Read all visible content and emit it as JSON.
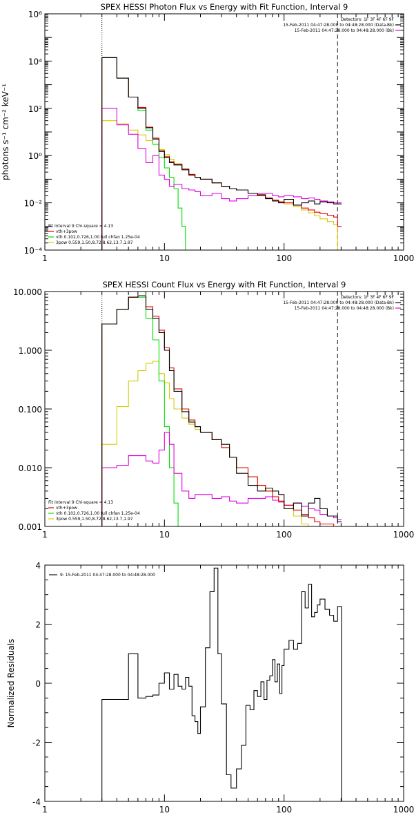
{
  "chart_data": [
    {
      "type": "line",
      "title": "SPEX HESSI Photon Flux vs Energy with Fit Function, Interval 9",
      "ylabel": "photons s⁻¹ cm⁻² keV⁻¹",
      "xscale": "log",
      "yscale": "log",
      "xlim": [
        1,
        1000
      ],
      "ylim": [
        0.0001,
        1000000
      ],
      "xticks": [
        "1",
        "10",
        "100",
        "1000"
      ],
      "yticks": [
        "10⁻⁴",
        "10⁻²",
        "10⁰",
        "10²",
        "10⁴",
        "10⁶"
      ],
      "legend_right": [
        "Detectors: 1F 3F 4F 6F 9F",
        "15-Feb-2011 04:47:28.000 to 04:48:28.000 (Data-Bk)",
        "15-Feb-2011 04:47:28.000 to 04:48:28.000 (Bk)"
      ],
      "legend_left": [
        "Fit Interval 9   Chi-square = 4.13",
        "vth+3pow",
        "vth 0.102,0.726,1.00  full chfan 1.25e-04",
        "3pow 0.559,1.50,8.72,8.62,13.7,1.97"
      ],
      "vlines": [
        3,
        280
      ],
      "series": [
        {
          "name": "15-Feb-2011 04:47:28.000 to 04:48:28.000 (Data-Bk)",
          "color": "#000000",
          "x": [
            3,
            4,
            5,
            6,
            7,
            8,
            9,
            10,
            11,
            12,
            14,
            16,
            18,
            20,
            25,
            30,
            35,
            40,
            50,
            60,
            70,
            80,
            90,
            100,
            120,
            140,
            160,
            180,
            200,
            230,
            260,
            280
          ],
          "y": [
            14000,
            1900,
            300,
            100,
            15,
            5,
            1.5,
            0.8,
            0.5,
            0.4,
            0.25,
            0.15,
            0.12,
            0.1,
            0.07,
            0.05,
            0.04,
            0.035,
            0.025,
            0.022,
            0.015,
            0.012,
            0.01,
            0.014,
            0.008,
            0.01,
            0.012,
            0.009,
            0.011,
            0.01,
            0.009,
            0.009
          ]
        },
        {
          "name": "vth+3pow",
          "color": "#e00000",
          "x": [
            3,
            4,
            5,
            6,
            7,
            8,
            9,
            10,
            11,
            12,
            14,
            16,
            18,
            20,
            25,
            30,
            35,
            40,
            50,
            60,
            70,
            80,
            90,
            100,
            120,
            140,
            160,
            180,
            200,
            230,
            260,
            280
          ],
          "y": [
            14000,
            1900,
            300,
            110,
            16,
            5.5,
            1.6,
            0.9,
            0.55,
            0.42,
            0.27,
            0.16,
            0.12,
            0.1,
            0.07,
            0.05,
            0.04,
            0.035,
            0.025,
            0.02,
            0.016,
            0.013,
            0.011,
            0.01,
            0.008,
            0.006,
            0.005,
            0.004,
            0.0035,
            0.003,
            0.0025,
            0.001
          ]
        },
        {
          "name": "vth",
          "color": "#00dd00",
          "x": [
            3,
            4,
            5,
            6,
            7,
            8,
            9,
            10,
            11,
            12,
            13,
            14,
            15
          ],
          "y": [
            14000,
            1900,
            300,
            80,
            12,
            3,
            0.8,
            0.3,
            0.12,
            0.04,
            0.006,
            0.001,
            0.0001
          ]
        },
        {
          "name": "3pow",
          "color": "#d8c800",
          "x": [
            3,
            4,
            5,
            6,
            7,
            8,
            9,
            10,
            11,
            12,
            14,
            16,
            18,
            20,
            25,
            30,
            35,
            40,
            50,
            60,
            70,
            80,
            90,
            100,
            120,
            140,
            160,
            180,
            200,
            230,
            260,
            280
          ],
          "y": [
            30,
            22,
            12,
            7.5,
            4.3,
            3,
            1.8,
            1.1,
            0.7,
            0.45,
            0.27,
            0.16,
            0.12,
            0.1,
            0.07,
            0.05,
            0.04,
            0.035,
            0.025,
            0.02,
            0.016,
            0.013,
            0.011,
            0.009,
            0.007,
            0.005,
            0.0038,
            0.0028,
            0.0021,
            0.0016,
            0.0012,
            0.0001
          ]
        },
        {
          "name": "15-Feb-2011 04:47:28.000 to 04:48:28.000 (Bk)",
          "color": "#dd00dd",
          "x": [
            3,
            4,
            5,
            6,
            7,
            8,
            9,
            10,
            11,
            12,
            14,
            16,
            18,
            20,
            25,
            30,
            35,
            40,
            50,
            60,
            70,
            80,
            90,
            100,
            120,
            140,
            160,
            180,
            200,
            230,
            260,
            280
          ],
          "y": [
            100,
            20,
            8,
            2,
            0.5,
            1,
            0.15,
            0.1,
            0.05,
            0.06,
            0.04,
            0.035,
            0.03,
            0.02,
            0.025,
            0.015,
            0.012,
            0.015,
            0.02,
            0.025,
            0.025,
            0.02,
            0.018,
            0.02,
            0.018,
            0.015,
            0.016,
            0.014,
            0.012,
            0.011,
            0.01,
            0.01
          ]
        }
      ]
    },
    {
      "type": "line",
      "title": "SPEX HESSI Count Flux vs Energy with Fit Function, Interval 9",
      "ylabel": "",
      "xscale": "log",
      "yscale": "log",
      "xlim": [
        1,
        1000
      ],
      "ylim": [
        0.001,
        10
      ],
      "xticks": [
        "1",
        "10",
        "100",
        "1000"
      ],
      "yticks": [
        "0.001",
        "0.010",
        "0.100",
        "1.000",
        "10.000"
      ],
      "legend_right": [
        "Detectors: 1F 3F 4F 6F 9F",
        "15-Feb-2011 04:47:28.000 to 04:48:28.000 (Data-Bk)",
        "15-Feb-2011 04:47:28.000 to 04:48:28.000 (Bk)"
      ],
      "legend_left": [
        "Fit Interval 9   Chi-square = 4.13",
        "vth+3pow",
        "vth 0.102,0.726,1.00  full chfan 1.25e-04",
        "3pow 0.559,1.50,8.72,8.62,13.7,1.97"
      ],
      "vlines": [
        3,
        280
      ],
      "series": [
        {
          "name": "15-Feb-2011 04:47:28.000 to 04:48:28.000 (Data-Bk)",
          "color": "#000000",
          "x": [
            3,
            4,
            5,
            6,
            7,
            8,
            9,
            10,
            11,
            12,
            14,
            16,
            18,
            20,
            25,
            30,
            35,
            40,
            50,
            60,
            70,
            80,
            90,
            100,
            120,
            140,
            160,
            180,
            200,
            230,
            260,
            280
          ],
          "y": [
            2.8,
            5,
            8,
            8.5,
            5,
            3.5,
            2,
            1,
            0.45,
            0.2,
            0.09,
            0.06,
            0.05,
            0.04,
            0.03,
            0.025,
            0.015,
            0.008,
            0.005,
            0.004,
            0.0045,
            0.004,
            0.0035,
            0.002,
            0.0025,
            0.0015,
            0.0025,
            0.003,
            0.002,
            0.0015,
            0.0015,
            0.0012
          ]
        },
        {
          "name": "vth+3pow",
          "color": "#e00000",
          "x": [
            3,
            4,
            5,
            6,
            7,
            8,
            9,
            10,
            11,
            12,
            14,
            16,
            18,
            20,
            25,
            30,
            35,
            40,
            50,
            60,
            70,
            80,
            90,
            100,
            120,
            140,
            160,
            180,
            200,
            230,
            260,
            280
          ],
          "y": [
            2.8,
            5,
            8,
            8.5,
            5.5,
            3.8,
            2.2,
            1.1,
            0.5,
            0.22,
            0.1,
            0.065,
            0.05,
            0.04,
            0.03,
            0.022,
            0.015,
            0.01,
            0.007,
            0.005,
            0.004,
            0.0032,
            0.0027,
            0.0023,
            0.0019,
            0.0016,
            0.0014,
            0.0012,
            0.0011,
            0.0011,
            0.001,
            0.001
          ]
        },
        {
          "name": "vth",
          "color": "#00dd00",
          "x": [
            3,
            4,
            5,
            6,
            7,
            8,
            9,
            10,
            11,
            12,
            13
          ],
          "y": [
            2.8,
            5,
            8,
            8,
            3.5,
            1.5,
            0.3,
            0.05,
            0.01,
            0.0025,
            0.001
          ]
        },
        {
          "name": "3pow",
          "color": "#d8c800",
          "x": [
            3,
            4,
            5,
            6,
            7,
            8,
            9,
            10,
            11,
            12,
            14,
            16,
            18,
            20,
            25,
            30,
            35,
            40,
            50,
            60,
            70,
            80,
            90,
            100,
            120,
            140,
            160,
            180,
            200,
            230,
            260,
            280
          ],
          "y": [
            0.025,
            0.11,
            0.3,
            0.45,
            0.6,
            0.65,
            0.4,
            0.28,
            0.15,
            0.1,
            0.07,
            0.055,
            0.045,
            0.04,
            0.03,
            0.022,
            0.015,
            0.01,
            0.007,
            0.005,
            0.004,
            0.0032,
            0.0026,
            0.002,
            0.0015,
            0.0011,
            0.001,
            0.001,
            0.001,
            0.001,
            0.001,
            0.001
          ]
        },
        {
          "name": "15-Feb-2011 04:47:28.000 to 04:48:28.000 (Bk)",
          "color": "#dd00dd",
          "x": [
            3,
            4,
            5,
            6,
            7,
            8,
            9,
            10,
            11,
            12,
            14,
            16,
            18,
            20,
            25,
            30,
            35,
            40,
            50,
            60,
            70,
            80,
            90,
            100,
            120,
            140,
            160,
            180,
            200,
            230,
            260,
            280
          ],
          "y": [
            0.01,
            0.011,
            0.016,
            0.016,
            0.013,
            0.012,
            0.02,
            0.04,
            0.025,
            0.008,
            0.004,
            0.003,
            0.0035,
            0.0035,
            0.003,
            0.0032,
            0.0027,
            0.0025,
            0.003,
            0.003,
            0.0032,
            0.0028,
            0.0026,
            0.0023,
            0.0025,
            0.0022,
            0.002,
            0.0019,
            0.0016,
            0.0015,
            0.0014,
            0.0013
          ]
        }
      ]
    },
    {
      "type": "line",
      "title": "",
      "ylabel": "Normalized Residuals",
      "xscale": "log",
      "yscale": "linear",
      "xlim": [
        1,
        1000
      ],
      "ylim": [
        -4,
        4
      ],
      "xticks": [
        "1",
        "10",
        "100",
        "1000"
      ],
      "yticks": [
        "-4",
        "-2",
        "0",
        "2",
        "4"
      ],
      "legend_left": [
        "9: 15-Feb-2011 04:47:28.000 to 04:48:28.000"
      ],
      "series": [
        {
          "name": "9: 15-Feb-2011 04:47:28.000 to 04:48:28.000",
          "color": "#000000",
          "x": [
            3,
            4,
            5,
            6,
            7,
            8,
            9,
            10,
            11,
            12,
            13,
            14,
            15,
            16,
            17,
            18,
            19,
            20,
            22,
            24,
            26,
            28,
            30,
            33,
            36,
            40,
            44,
            48,
            52,
            56,
            60,
            64,
            68,
            72,
            76,
            80,
            84,
            88,
            92,
            96,
            100,
            110,
            120,
            130,
            140,
            150,
            160,
            170,
            180,
            190,
            200,
            220,
            240,
            260,
            280
          ],
          "y": [
            -0.55,
            -0.55,
            1,
            -0.5,
            -0.45,
            -0.4,
            0,
            0.35,
            -0.2,
            0.3,
            -0.1,
            -0.2,
            0.2,
            -0.1,
            -1.1,
            -1.3,
            -1.7,
            -0.8,
            1.2,
            3.1,
            3.9,
            1,
            -0.7,
            -3.1,
            -3.55,
            -2.9,
            -2.1,
            -0.75,
            -0.9,
            -0.25,
            -0.45,
            0.05,
            -0.55,
            0.1,
            0.25,
            0.8,
            0.05,
            0.65,
            -0.35,
            0.6,
            1.15,
            1.45,
            1.15,
            1.35,
            3.1,
            2.55,
            3.35,
            2.25,
            2.4,
            2.65,
            2.85,
            2.5,
            2.3,
            2.1,
            2.6
          ]
        }
      ]
    }
  ]
}
